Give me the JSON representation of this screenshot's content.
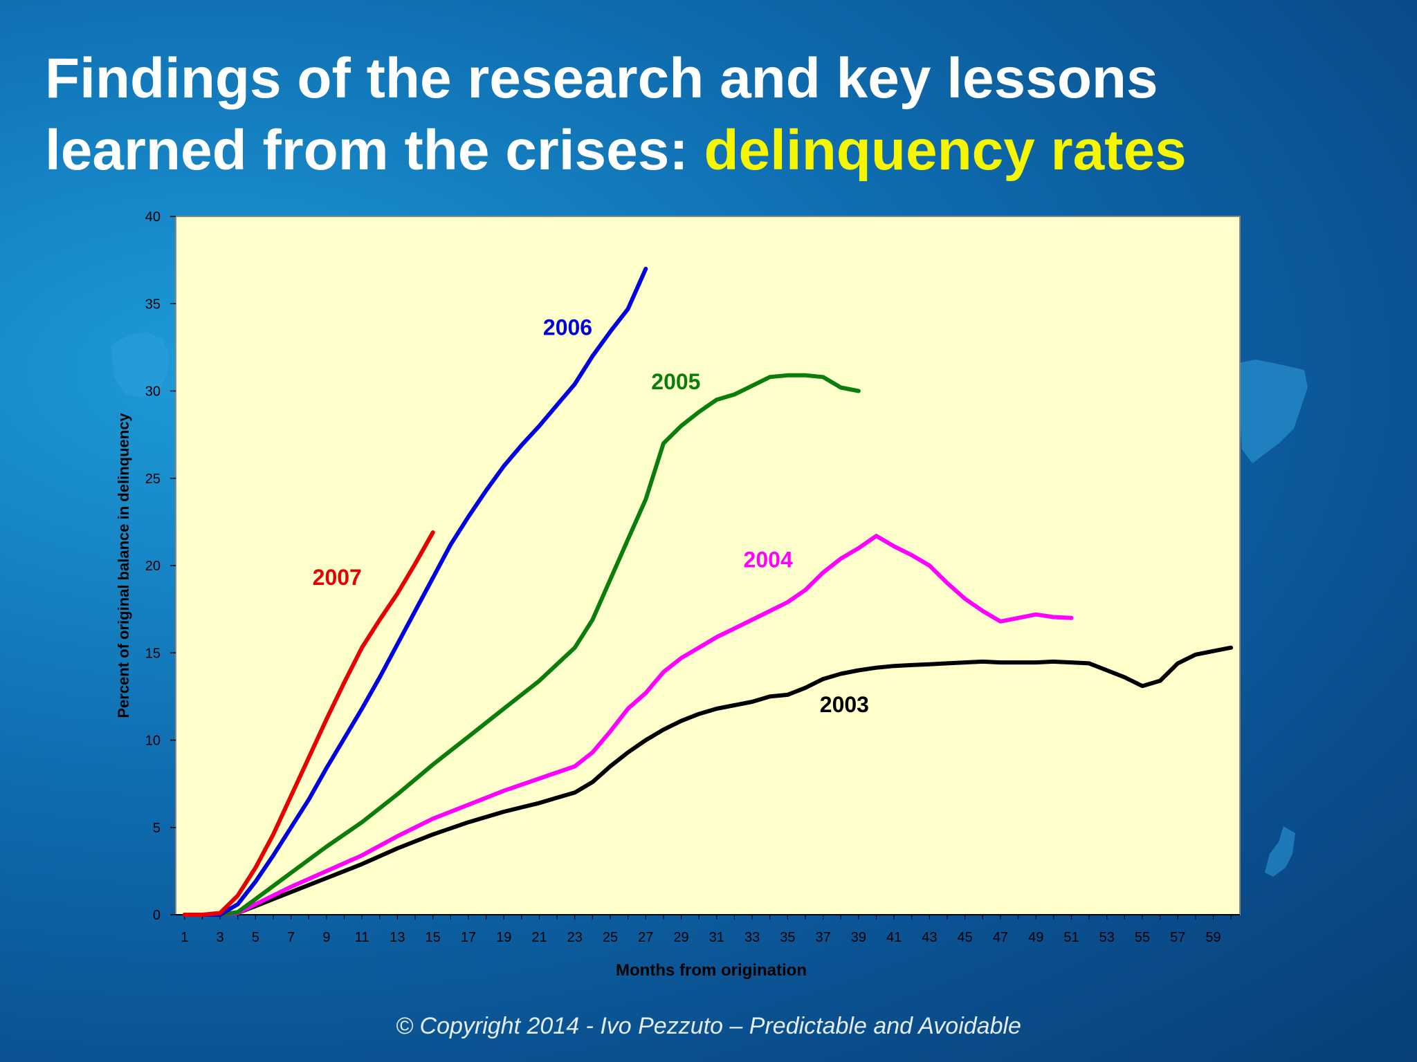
{
  "slide": {
    "title_line1": "Findings of the research and key lessons",
    "title_line2_prefix": "learned from the crises: ",
    "title_highlight": "delinquency rates",
    "footer": "© Copyright  2014  - Ivo Pezzuto –  Predictable and  Avoidable"
  },
  "colors": {
    "highlight": "#f6f600",
    "plot_bg": "#ffffcc"
  },
  "chart_data": {
    "type": "line",
    "title": "",
    "xlabel": "Months from origination",
    "ylabel": "Percent of original balance  in delinquency",
    "xlim": [
      0.5,
      60.5
    ],
    "ylim": [
      0,
      40
    ],
    "x_ticks": [
      1,
      3,
      5,
      7,
      9,
      11,
      13,
      15,
      17,
      19,
      21,
      23,
      25,
      27,
      29,
      31,
      33,
      35,
      37,
      39,
      41,
      43,
      45,
      47,
      49,
      51,
      53,
      55,
      57,
      59
    ],
    "y_ticks": [
      0,
      5,
      10,
      15,
      20,
      25,
      30,
      35,
      40
    ],
    "grid": false,
    "legend": "inline labels",
    "series": [
      {
        "name": "2003",
        "color": "#000000",
        "x": [
          1,
          2,
          3,
          4,
          5,
          7,
          9,
          11,
          13,
          15,
          17,
          19,
          21,
          22,
          23,
          24,
          25,
          26,
          27,
          28,
          29,
          30,
          31,
          32,
          33,
          34,
          35,
          36,
          37,
          38,
          39,
          40,
          41,
          42,
          43,
          44,
          45,
          46,
          47,
          48,
          49,
          50,
          51,
          52,
          53,
          54,
          55,
          56,
          57,
          58,
          59,
          60
        ],
        "values": [
          0,
          0,
          0,
          0.1,
          0.5,
          1.3,
          2.1,
          2.9,
          3.8,
          4.6,
          5.3,
          5.9,
          6.4,
          6.7,
          7.0,
          7.6,
          8.5,
          9.3,
          10.0,
          10.6,
          11.1,
          11.5,
          11.8,
          12.0,
          12.2,
          12.5,
          12.6,
          13.0,
          13.5,
          13.8,
          14.0,
          14.15,
          14.25,
          14.3,
          14.35,
          14.4,
          14.45,
          14.5,
          14.45,
          14.45,
          14.45,
          14.5,
          14.45,
          14.4,
          14.0,
          13.6,
          13.1,
          13.4,
          14.4,
          14.9,
          15.1,
          15.3
        ]
      },
      {
        "name": "2004",
        "color": "#ff00ff",
        "x": [
          1,
          2,
          3,
          4,
          5,
          7,
          9,
          11,
          13,
          15,
          17,
          19,
          21,
          23,
          24,
          25,
          26,
          27,
          28,
          29,
          30,
          31,
          32,
          33,
          34,
          35,
          36,
          37,
          38,
          39,
          40,
          41,
          42,
          43,
          44,
          45,
          46,
          47,
          48,
          49,
          50,
          51
        ],
        "values": [
          0,
          0,
          0,
          0.1,
          0.6,
          1.6,
          2.5,
          3.4,
          4.5,
          5.5,
          6.3,
          7.1,
          7.8,
          8.5,
          9.3,
          10.5,
          11.8,
          12.7,
          13.9,
          14.7,
          15.3,
          15.9,
          16.4,
          16.9,
          17.4,
          17.9,
          18.6,
          19.6,
          20.4,
          21.0,
          21.7,
          21.1,
          20.6,
          20.0,
          19.0,
          18.1,
          17.4,
          16.8,
          17.0,
          17.2,
          17.05,
          17.0
        ]
      },
      {
        "name": "2005",
        "color": "#0a7d0a",
        "x": [
          1,
          2,
          3,
          4,
          5,
          7,
          9,
          11,
          13,
          15,
          17,
          19,
          21,
          23,
          24,
          25,
          26,
          27,
          28,
          29,
          30,
          31,
          32,
          33,
          34,
          35,
          36,
          37,
          38,
          39
        ],
        "values": [
          0,
          0,
          0,
          0.15,
          0.9,
          2.4,
          3.9,
          5.3,
          6.9,
          8.6,
          10.2,
          11.8,
          13.4,
          15.3,
          16.9,
          19.2,
          21.5,
          23.8,
          27.0,
          28.0,
          28.8,
          29.5,
          29.8,
          30.3,
          30.8,
          30.9,
          30.9,
          30.8,
          30.2,
          30.0
        ]
      },
      {
        "name": "2006",
        "color": "#0000e0",
        "x": [
          1,
          2,
          3,
          4,
          5,
          6,
          7,
          8,
          9,
          10,
          11,
          12,
          13,
          14,
          15,
          16,
          17,
          18,
          19,
          20,
          21,
          22,
          23,
          24,
          25,
          26,
          27
        ],
        "values": [
          0,
          0,
          0,
          0.6,
          1.9,
          3.4,
          5.0,
          6.6,
          8.4,
          10.1,
          11.8,
          13.6,
          15.5,
          17.4,
          19.3,
          21.2,
          22.8,
          24.3,
          25.7,
          26.9,
          28.0,
          29.2,
          30.4,
          32.0,
          33.4,
          34.7,
          37.0
        ]
      },
      {
        "name": "2007",
        "color": "#e60000",
        "x": [
          1,
          2,
          3,
          4,
          5,
          6,
          7,
          8,
          9,
          10,
          11,
          12,
          13,
          14,
          15
        ],
        "values": [
          0,
          0,
          0.1,
          1.1,
          2.7,
          4.6,
          6.8,
          9.0,
          11.2,
          13.3,
          15.3,
          16.9,
          18.4,
          20.1,
          21.9
        ]
      }
    ],
    "series_labels": [
      {
        "text": "2007",
        "x": 9.6,
        "y": 18.9,
        "color": "#e60000"
      },
      {
        "text": "2006",
        "x": 22.6,
        "y": 33.2,
        "color": "#0000e0"
      },
      {
        "text": "2005",
        "x": 28.7,
        "y": 30.1,
        "color": "#0a7d0a"
      },
      {
        "text": "2004",
        "x": 33.9,
        "y": 19.9,
        "color": "#ff00ff"
      },
      {
        "text": "2003",
        "x": 38.2,
        "y": 11.6,
        "color": "#000000"
      }
    ]
  }
}
